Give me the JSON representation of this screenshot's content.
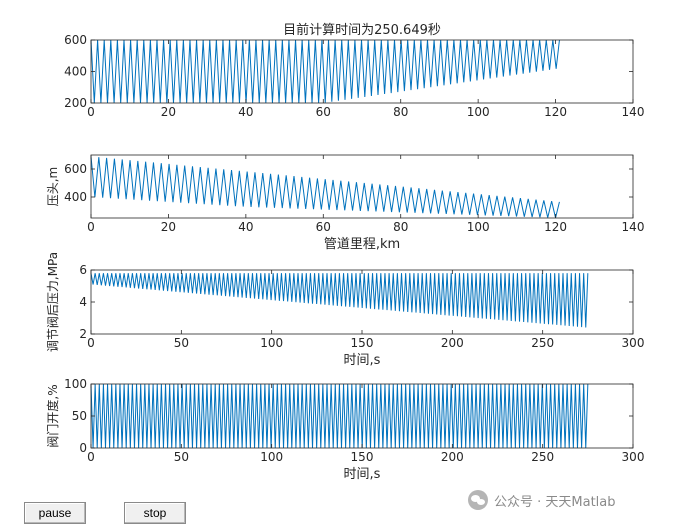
{
  "chart_data": [
    {
      "type": "line",
      "title": "目前计算时间为250.649秒",
      "xlabel": "",
      "ylabel": "",
      "xlim": [
        0,
        140
      ],
      "ylim": [
        200,
        600
      ],
      "xticks": [
        0,
        20,
        40,
        60,
        80,
        100,
        120,
        140
      ],
      "yticks": [
        200,
        400,
        600
      ],
      "series": [
        {
          "color": "#0072bd",
          "kind": "zigzag",
          "x_start": 0,
          "x_end": 121,
          "cycles": 71,
          "upper": [
            [
              0,
              600
            ],
            [
              121,
              600
            ]
          ],
          "lower": [
            [
              0,
              200
            ],
            [
              60,
              200
            ],
            [
              121,
              420
            ]
          ]
        }
      ]
    },
    {
      "type": "line",
      "title": "",
      "xlabel": "管道里程,km",
      "ylabel": "压头,m",
      "xlim": [
        0,
        140
      ],
      "ylim": [
        250,
        700
      ],
      "xticks": [
        0,
        20,
        40,
        60,
        80,
        100,
        120,
        140
      ],
      "yticks": [
        400,
        600
      ],
      "series": [
        {
          "color": "#0072bd",
          "kind": "zigzag",
          "x_start": 0,
          "x_end": 121,
          "cycles": 60,
          "upper": [
            [
              0,
              690
            ],
            [
              121,
              365
            ]
          ],
          "lower": [
            [
              0,
              400
            ],
            [
              40,
              330
            ],
            [
              121,
              250
            ]
          ]
        }
      ]
    },
    {
      "type": "line",
      "title": "",
      "xlabel": "时间,s",
      "ylabel": "调节阀后压力,MPa",
      "xlim": [
        0,
        300
      ],
      "ylim": [
        2,
        6
      ],
      "xticks": [
        0,
        50,
        100,
        150,
        200,
        250,
        300
      ],
      "yticks": [
        2,
        4,
        6
      ],
      "series": [
        {
          "color": "#0072bd",
          "kind": "zigzag",
          "x_start": 0,
          "x_end": 275,
          "cycles": 120,
          "upper": [
            [
              0,
              5.8
            ],
            [
              275,
              5.8
            ]
          ],
          "lower": [
            [
              0,
              5.1
            ],
            [
              275,
              2.4
            ]
          ]
        }
      ]
    },
    {
      "type": "line",
      "title": "",
      "xlabel": "时间,s",
      "ylabel": "阀门开度,%",
      "xlim": [
        0,
        300
      ],
      "ylim": [
        0,
        100
      ],
      "xticks": [
        0,
        50,
        100,
        150,
        200,
        250,
        300
      ],
      "yticks": [
        0,
        50,
        100
      ],
      "series": [
        {
          "color": "#0072bd",
          "kind": "zigzag",
          "x_start": 0,
          "x_end": 275,
          "cycles": 120,
          "upper": [
            [
              0,
              100
            ],
            [
              275,
              100
            ]
          ],
          "lower": [
            [
              0,
              0
            ],
            [
              275,
              0
            ]
          ]
        }
      ]
    }
  ],
  "controls": {
    "pause_label": "pause",
    "stop_label": "stop"
  },
  "watermark": {
    "text": "公众号 · 天天Matlab"
  }
}
